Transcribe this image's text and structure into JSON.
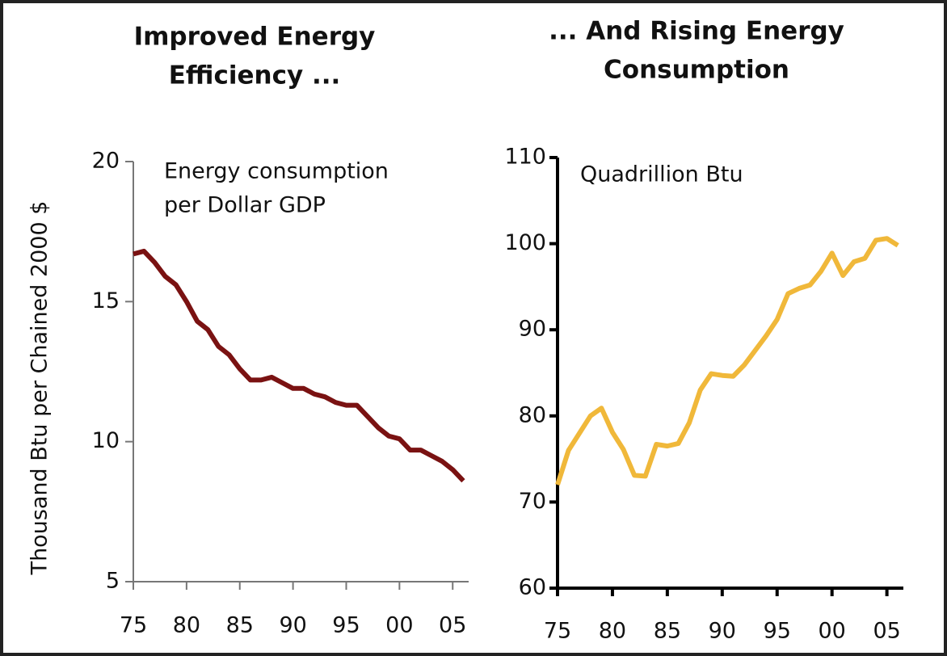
{
  "chart_data": [
    {
      "type": "line",
      "title": [
        "Improved Energy",
        "Efficiency ..."
      ],
      "annotation": [
        "Energy consumption",
        "per Dollar GDP"
      ],
      "ylabel": "Thousand Btu per Chained 2000 $",
      "x": [
        1975,
        1976,
        1977,
        1978,
        1979,
        1980,
        1981,
        1982,
        1983,
        1984,
        1985,
        1986,
        1987,
        1988,
        1989,
        1990,
        1991,
        1992,
        1993,
        1994,
        1995,
        1996,
        1997,
        1998,
        1999,
        2000,
        2001,
        2002,
        2003,
        2004,
        2005,
        2006
      ],
      "values": [
        16.7,
        16.8,
        16.4,
        15.9,
        15.6,
        15.0,
        14.3,
        14.0,
        13.4,
        13.1,
        12.6,
        12.2,
        12.2,
        12.3,
        12.1,
        11.9,
        11.9,
        11.7,
        11.6,
        11.4,
        11.3,
        11.3,
        10.9,
        10.5,
        10.2,
        10.1,
        9.7,
        9.7,
        9.5,
        9.3,
        9.0,
        8.6
      ],
      "color": "#7a1212",
      "xlim": [
        1975,
        2006.5
      ],
      "ylim": [
        5,
        20
      ],
      "yticks": [
        5,
        10,
        15,
        20
      ],
      "xticks": [
        {
          "value": 1975,
          "label": "75"
        },
        {
          "value": 1980,
          "label": "80"
        },
        {
          "value": 1985,
          "label": "85"
        },
        {
          "value": 1990,
          "label": "90"
        },
        {
          "value": 1995,
          "label": "95"
        },
        {
          "value": 2000,
          "label": "00"
        },
        {
          "value": 2005,
          "label": "05"
        }
      ]
    },
    {
      "type": "line",
      "title": [
        "... And Rising Energy",
        "Consumption"
      ],
      "annotation": [
        "Quadrillion Btu"
      ],
      "x": [
        1975,
        1976,
        1977,
        1978,
        1979,
        1980,
        1981,
        1982,
        1983,
        1984,
        1985,
        1986,
        1987,
        1988,
        1989,
        1990,
        1991,
        1992,
        1993,
        1994,
        1995,
        1996,
        1997,
        1998,
        1999,
        2000,
        2001,
        2002,
        2003,
        2004,
        2005,
        2006
      ],
      "values": [
        72.0,
        76.0,
        78.0,
        80.0,
        80.9,
        78.1,
        76.1,
        73.1,
        73.0,
        76.7,
        76.5,
        76.8,
        79.2,
        83.0,
        84.9,
        84.7,
        84.6,
        85.9,
        87.6,
        89.3,
        91.2,
        94.2,
        94.8,
        95.2,
        96.8,
        98.9,
        96.3,
        97.9,
        98.3,
        100.4,
        100.6,
        99.8
      ],
      "color": "#f0b83a",
      "xlim": [
        1975,
        2006.5
      ],
      "ylim": [
        60,
        110
      ],
      "yticks": [
        60,
        70,
        80,
        90,
        100,
        110
      ],
      "xticks": [
        {
          "value": 1975,
          "label": "75"
        },
        {
          "value": 1980,
          "label": "80"
        },
        {
          "value": 1985,
          "label": "85"
        },
        {
          "value": 1990,
          "label": "90"
        },
        {
          "value": 1995,
          "label": "95"
        },
        {
          "value": 2000,
          "label": "00"
        },
        {
          "value": 2005,
          "label": "05"
        }
      ]
    }
  ]
}
